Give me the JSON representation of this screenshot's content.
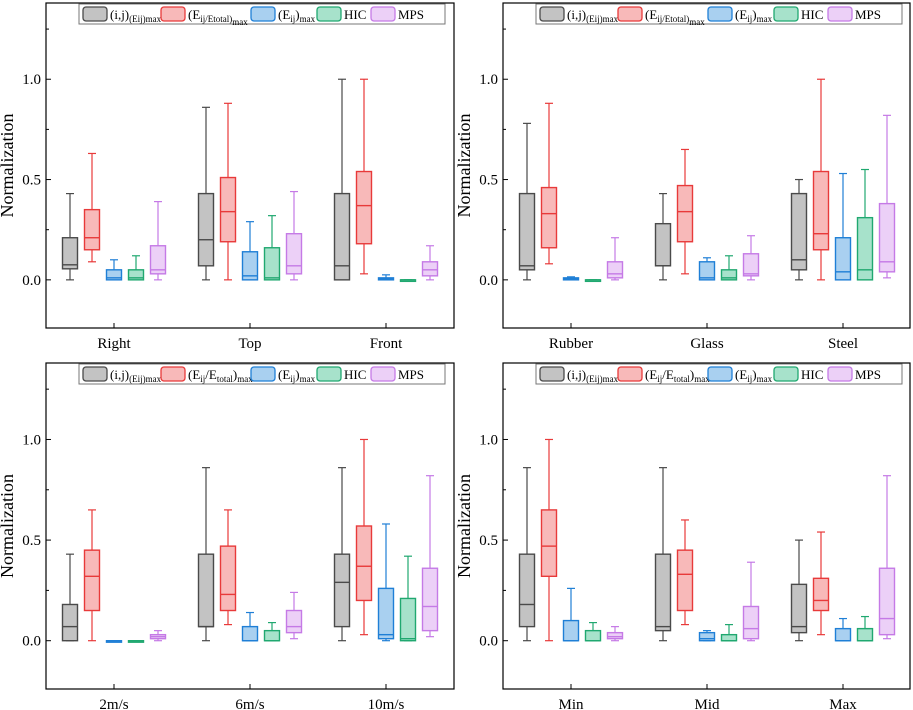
{
  "chart_data": [
    {
      "type": "box",
      "ylabel": "Normalization",
      "ylim": [
        -0.24,
        1.38
      ],
      "yticks": [
        "0.0",
        "0.5",
        "1.0"
      ],
      "legend": [
        "(i,j)(Eij)max",
        "(Eij/Etotal)max",
        "(Eij)max",
        "HIC",
        "MPS"
      ],
      "categories": [
        "Right",
        "Top",
        "Front"
      ],
      "series": [
        {
          "name": "(i,j)(Eij)max",
          "boxes": [
            [
              0,
              0.055,
              0.075,
              0.21,
              0.43
            ],
            [
              0,
              0.07,
              0.2,
              0.43,
              0.86
            ],
            [
              0,
              0,
              0.07,
              0.43,
              1.0
            ]
          ]
        },
        {
          "name": "(Eij/Etotal)max",
          "boxes": [
            [
              0.09,
              0.15,
              0.21,
              0.35,
              0.63
            ],
            [
              0,
              0.19,
              0.34,
              0.51,
              0.88
            ],
            [
              0.03,
              0.18,
              0.37,
              0.54,
              1.0
            ]
          ]
        },
        {
          "name": "(Eij)max",
          "boxes": [
            [
              0,
              0,
              0.01,
              0.05,
              0.1
            ],
            [
              0,
              0,
              0.02,
              0.14,
              0.29
            ],
            [
              0,
              0,
              0.005,
              0.01,
              0.025
            ]
          ]
        },
        {
          "name": "HIC",
          "boxes": [
            [
              0,
              0,
              0.01,
              0.05,
              0.12
            ],
            [
              0,
              0,
              0.01,
              0.16,
              0.32
            ],
            [
              0,
              0,
              0,
              0,
              0
            ]
          ]
        },
        {
          "name": "MPS",
          "boxes": [
            [
              0,
              0.03,
              0.05,
              0.17,
              0.39
            ],
            [
              0,
              0.03,
              0.07,
              0.23,
              0.44
            ],
            [
              0,
              0.02,
              0.05,
              0.09,
              0.17
            ]
          ]
        }
      ]
    },
    {
      "type": "box",
      "ylabel": "Normalization",
      "ylim": [
        -0.24,
        1.38
      ],
      "yticks": [
        "0.0",
        "0.5",
        "1.0"
      ],
      "legend": [
        "(i,j)(Eij)max",
        "(Eij/Etotal)max",
        "(Eij)max",
        "HIC",
        "MPS"
      ],
      "categories": [
        "Rubber",
        "Glass",
        "Steel"
      ],
      "series": [
        {
          "name": "(i,j)(Eij)max",
          "boxes": [
            [
              0,
              0.05,
              0.07,
              0.43,
              0.78
            ],
            [
              0,
              0.07,
              0.07,
              0.28,
              0.43
            ],
            [
              0,
              0.05,
              0.1,
              0.43,
              0.5
            ]
          ]
        },
        {
          "name": "(Eij/Etotal)max",
          "boxes": [
            [
              0.08,
              0.16,
              0.33,
              0.46,
              0.88
            ],
            [
              0.03,
              0.19,
              0.34,
              0.47,
              0.65
            ],
            [
              0,
              0.15,
              0.23,
              0.54,
              1.0
            ]
          ]
        },
        {
          "name": "(Eij)max",
          "boxes": [
            [
              0,
              0,
              0.005,
              0.01,
              0.015
            ],
            [
              0,
              0,
              0.01,
              0.09,
              0.11
            ],
            [
              0,
              0,
              0.04,
              0.21,
              0.53
            ]
          ]
        },
        {
          "name": "HIC",
          "boxes": [
            [
              0,
              0,
              0,
              0,
              0
            ],
            [
              0,
              0,
              0.01,
              0.05,
              0.12
            ],
            [
              0,
              0,
              0.05,
              0.31,
              0.55
            ]
          ]
        },
        {
          "name": "MPS",
          "boxes": [
            [
              0,
              0.01,
              0.03,
              0.09,
              0.21
            ],
            [
              0,
              0.02,
              0.03,
              0.13,
              0.22
            ],
            [
              0.01,
              0.04,
              0.09,
              0.38,
              0.82
            ]
          ]
        }
      ]
    },
    {
      "type": "box",
      "ylabel": "Normalization",
      "ylim": [
        -0.24,
        1.38
      ],
      "yticks": [
        "0.0",
        "0.5",
        "1.0"
      ],
      "legend": [
        "(i,j)(Eij)max",
        "(Eij/Etotal)max",
        "(Eij)max",
        "HIC",
        "MPS"
      ],
      "categories": [
        "2m/s",
        "6m/s",
        "10m/s"
      ],
      "series": [
        {
          "name": "(i,j)(Eij)max",
          "boxes": [
            [
              0,
              0,
              0.07,
              0.18,
              0.43
            ],
            [
              0,
              0.07,
              0.07,
              0.43,
              0.86
            ],
            [
              0,
              0.07,
              0.29,
              0.43,
              0.86
            ]
          ]
        },
        {
          "name": "(Eij/Etotal)max",
          "boxes": [
            [
              0,
              0.15,
              0.32,
              0.45,
              0.65
            ],
            [
              0.08,
              0.15,
              0.23,
              0.47,
              0.65
            ],
            [
              0.03,
              0.2,
              0.37,
              0.57,
              1.0
            ]
          ]
        },
        {
          "name": "(Eij)max",
          "boxes": [
            [
              0,
              0,
              0,
              0,
              0
            ],
            [
              0,
              0,
              0,
              0.07,
              0.14
            ],
            [
              0,
              0.01,
              0.03,
              0.26,
              0.58
            ]
          ]
        },
        {
          "name": "HIC",
          "boxes": [
            [
              0,
              0,
              0,
              0,
              0
            ],
            [
              0,
              0,
              0,
              0.05,
              0.09
            ],
            [
              0,
              0,
              0.01,
              0.21,
              0.42
            ]
          ]
        },
        {
          "name": "MPS",
          "boxes": [
            [
              0,
              0.01,
              0.02,
              0.03,
              0.05
            ],
            [
              0.01,
              0.04,
              0.07,
              0.15,
              0.24
            ],
            [
              0.02,
              0.05,
              0.17,
              0.36,
              0.82
            ]
          ]
        }
      ]
    },
    {
      "type": "box",
      "ylabel": "Normalization",
      "ylim": [
        -0.24,
        1.38
      ],
      "yticks": [
        "0.0",
        "0.5",
        "1.0"
      ],
      "legend": [
        "(i,j)(Eij)max",
        "(Eij/Etotal)max",
        "(Eij)max",
        "HIC",
        "MPS"
      ],
      "categories": [
        "Min",
        "Mid",
        "Max"
      ],
      "series": [
        {
          "name": "(i,j)(Eij)max",
          "boxes": [
            [
              0,
              0.07,
              0.18,
              0.43,
              0.86
            ],
            [
              0,
              0.05,
              0.07,
              0.43,
              0.86
            ],
            [
              0,
              0.04,
              0.07,
              0.28,
              0.5
            ]
          ]
        },
        {
          "name": "(Eij/Etotal)max",
          "boxes": [
            [
              0,
              0.32,
              0.47,
              0.65,
              1.0
            ],
            [
              0.08,
              0.15,
              0.33,
              0.45,
              0.6
            ],
            [
              0.03,
              0.15,
              0.2,
              0.31,
              0.54
            ]
          ]
        },
        {
          "name": "(Eij)max",
          "boxes": [
            [
              0,
              0,
              0,
              0.1,
              0.26
            ],
            [
              0,
              0,
              0.01,
              0.04,
              0.05
            ],
            [
              0,
              0,
              0,
              0.06,
              0.11
            ]
          ]
        },
        {
          "name": "HIC",
          "boxes": [
            [
              0,
              0,
              0,
              0.05,
              0.09
            ],
            [
              0,
              0,
              0,
              0.03,
              0.08
            ],
            [
              0,
              0,
              0,
              0.06,
              0.12
            ]
          ]
        },
        {
          "name": "MPS",
          "boxes": [
            [
              0,
              0.01,
              0.02,
              0.04,
              0.07
            ],
            [
              0,
              0.01,
              0.06,
              0.17,
              0.39
            ],
            [
              0.01,
              0.03,
              0.11,
              0.36,
              0.82
            ]
          ]
        }
      ]
    }
  ],
  "colors": {
    "stroke": [
      "#4a4a4a",
      "#e83a3a",
      "#1f7fd6",
      "#20a870",
      "#c57ae6"
    ],
    "fill": [
      "#c3c3c3",
      "#f8b9b9",
      "#a9d0f0",
      "#a7e2cb",
      "#ecd0f7"
    ]
  }
}
